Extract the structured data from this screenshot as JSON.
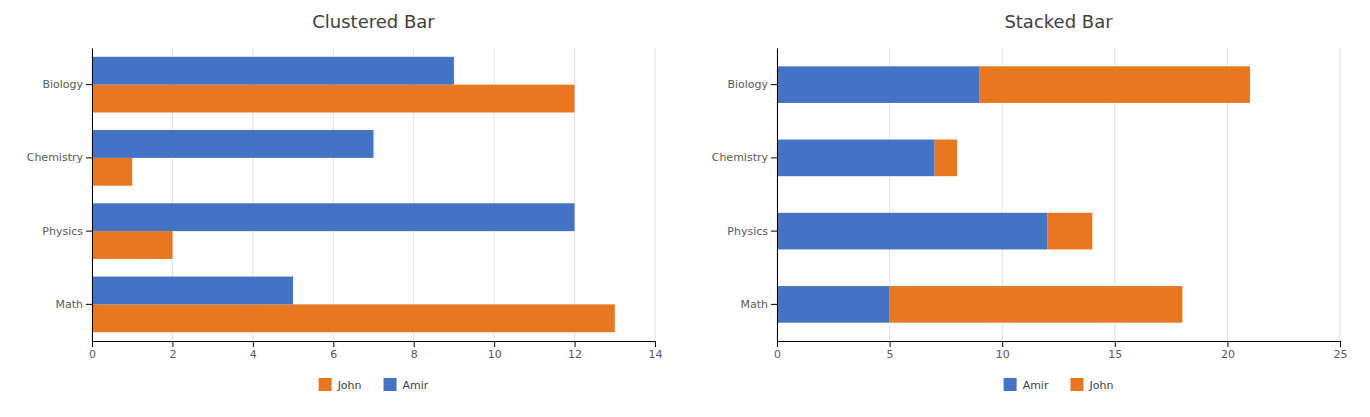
{
  "chart_data": [
    {
      "type": "bar",
      "title": "Clustered Bar",
      "orientation": "horizontal",
      "categories": [
        "Biology",
        "Chemistry",
        "Physics",
        "Math"
      ],
      "series": [
        {
          "name": "John",
          "color": "#E87722",
          "values": [
            12,
            1,
            2,
            13
          ]
        },
        {
          "name": "Amir",
          "color": "#4472C4",
          "values": [
            9,
            7,
            12,
            5
          ]
        }
      ],
      "xlim": [
        0,
        14
      ],
      "xticks": [
        0,
        2,
        4,
        6,
        8,
        10,
        12,
        14
      ],
      "grid": true,
      "legend": "bottom"
    },
    {
      "type": "bar",
      "title": "Stacked Bar",
      "orientation": "horizontal",
      "stacked": true,
      "categories": [
        "Biology",
        "Chemistry",
        "Physics",
        "Math"
      ],
      "series": [
        {
          "name": "Amir",
          "color": "#4472C4",
          "values": [
            9,
            7,
            12,
            5
          ]
        },
        {
          "name": "John",
          "color": "#E87722",
          "values": [
            12,
            1,
            2,
            13
          ]
        }
      ],
      "xlim": [
        0,
        25
      ],
      "xticks": [
        0,
        5,
        10,
        15,
        20,
        25
      ],
      "grid": true,
      "legend": "bottom"
    }
  ]
}
